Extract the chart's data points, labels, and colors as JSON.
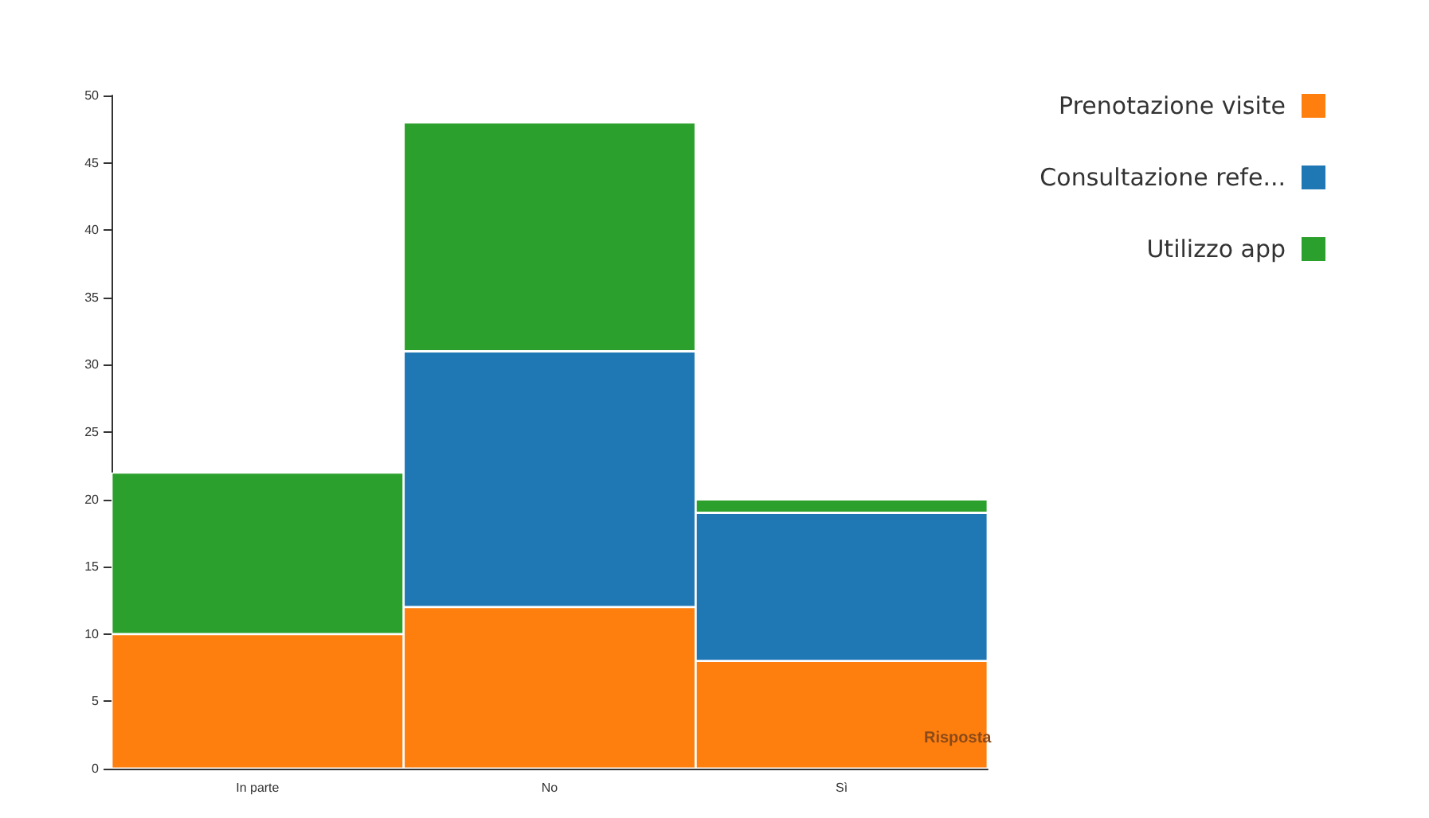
{
  "chart_data": {
    "type": "bar",
    "stacked": true,
    "xlabel": "Risposta",
    "categories": [
      "In parte",
      "No",
      "Sì"
    ],
    "series": [
      {
        "name": "Prenotazione visite",
        "color": "#ff7f0e",
        "values": [
          10,
          12,
          8
        ]
      },
      {
        "name": "Consultazione refe...",
        "color": "#1f77b4",
        "values": [
          0,
          19,
          11
        ]
      },
      {
        "name": "Utilizzo app",
        "color": "#2ca02c",
        "values": [
          12,
          17,
          1
        ]
      }
    ],
    "ylim": [
      0,
      50
    ],
    "yticks": [
      0,
      5,
      10,
      15,
      20,
      25,
      30,
      35,
      40,
      45,
      50
    ],
    "grid": false,
    "legend": "top right"
  }
}
